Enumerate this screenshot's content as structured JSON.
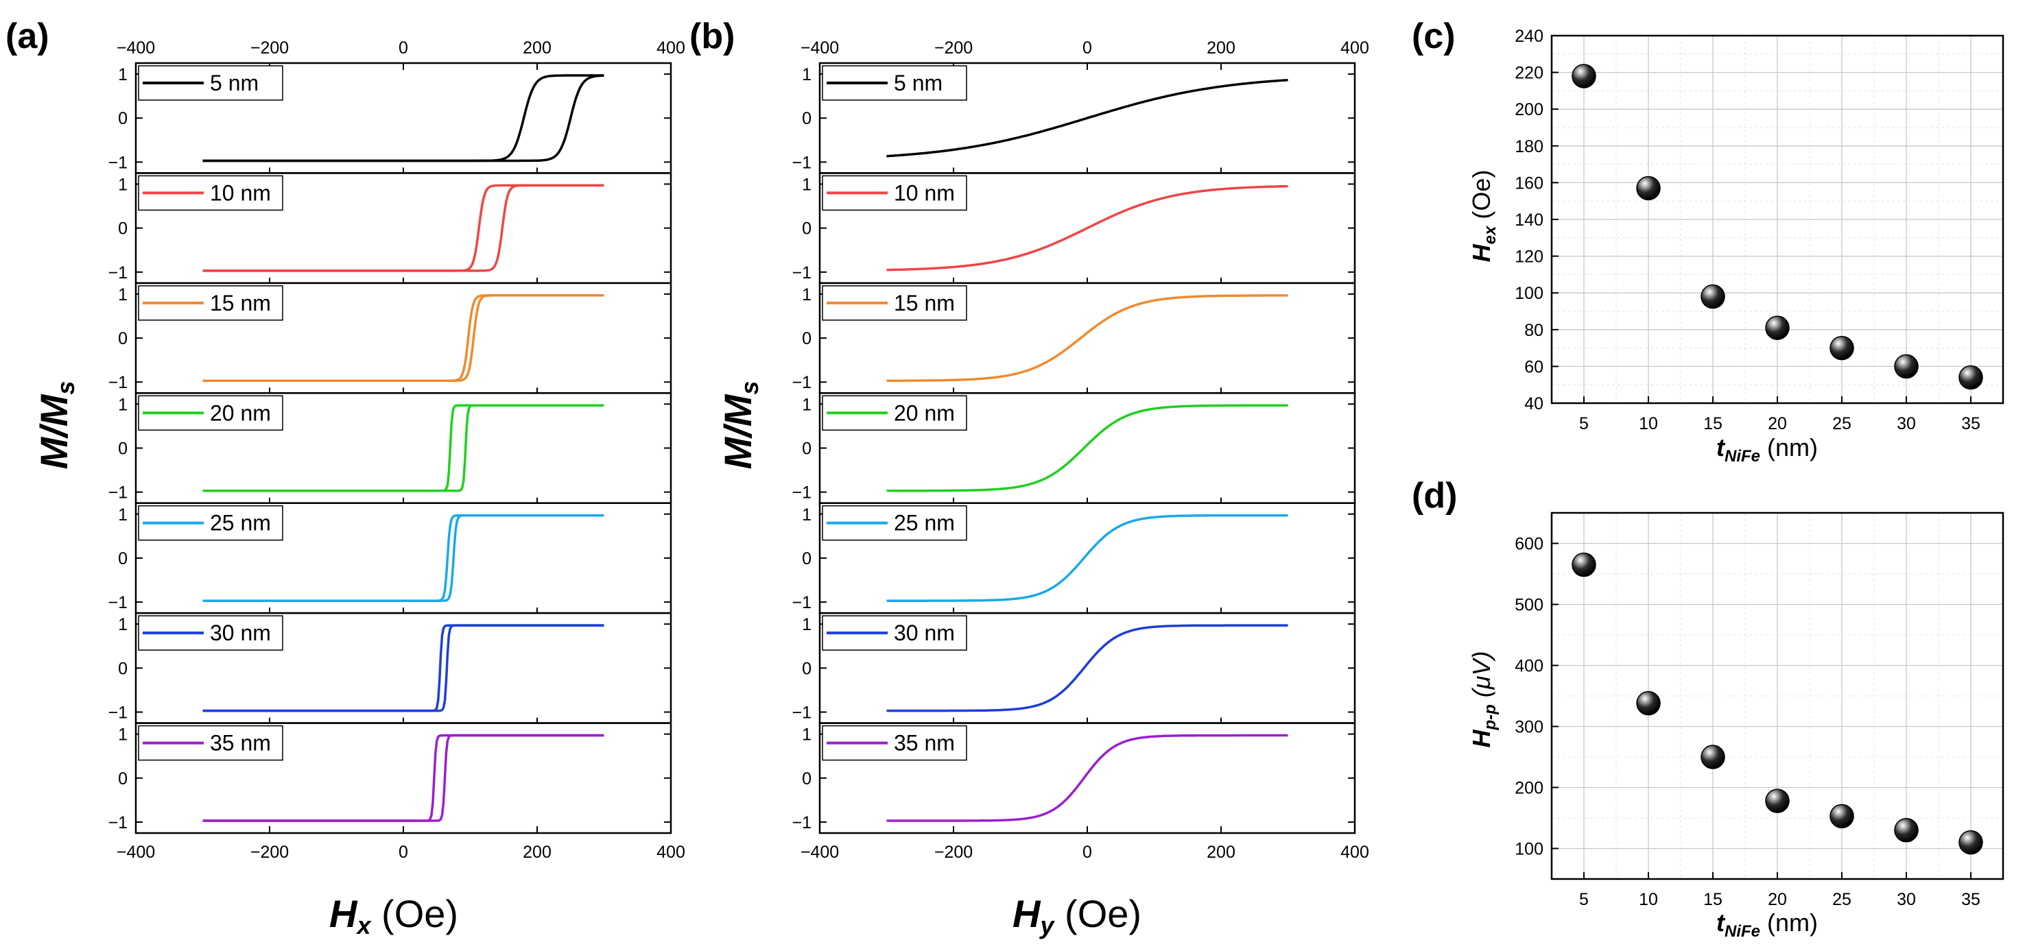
{
  "panel_labels": {
    "a": "(a)",
    "b": "(b)",
    "c": "(c)",
    "d": "(d)"
  },
  "axis_titles": {
    "a_x": {
      "main": "H",
      "sub": "x",
      "unit": " (Oe)"
    },
    "b_x": {
      "main": "H",
      "sub": "y",
      "unit": " (Oe)"
    },
    "a_y": {
      "main": "M/M",
      "sub": "s"
    },
    "b_y": {
      "main": "M/M",
      "sub": "s"
    },
    "c_y": {
      "main": "H",
      "sub": "ex",
      "unit": " (Oe)"
    },
    "d_y": {
      "main": "H",
      "sub": "p-p",
      "unit": " (μV)"
    },
    "c_x": {
      "main": "t",
      "sub": "NiFe",
      "unit": " (nm)"
    },
    "d_x": {
      "main": "t",
      "sub": "NiFe",
      "unit": " (nm)"
    }
  },
  "colors": {
    "5 nm": "#000000",
    "10 nm": "#f04545",
    "15 nm": "#f08a2e",
    "20 nm": "#20d020",
    "25 nm": "#19a9ea",
    "30 nm": "#1d3fd8",
    "35 nm": "#9b1fd0"
  },
  "chart_data": [
    {
      "id": "a",
      "type": "line",
      "title": "",
      "xlabel": "Hx (Oe)",
      "ylabel": "M/Ms",
      "xlim": [
        -400,
        400
      ],
      "xticks": [
        -400,
        -200,
        0,
        200,
        400
      ],
      "xtick_labels": [
        "−400",
        "−200",
        "0",
        "200",
        "400"
      ],
      "ylim": [
        -1.25,
        1.25
      ],
      "yticks": [
        -1,
        0,
        1
      ],
      "ytick_labels": [
        "−1",
        "0",
        "1"
      ],
      "field_range": [
        -300,
        300
      ],
      "legend_position": "top-left",
      "series": [
        {
          "name": "5 nm",
          "loop": "square",
          "switch_up_Oe": 250,
          "switch_down_Oe": 180,
          "width_Oe": 16
        },
        {
          "name": "10 nm",
          "loop": "square",
          "switch_up_Oe": 148,
          "switch_down_Oe": 113,
          "width_Oe": 8
        },
        {
          "name": "15 nm",
          "loop": "square",
          "switch_up_Oe": 105,
          "switch_down_Oe": 97,
          "width_Oe": 7
        },
        {
          "name": "20 nm",
          "loop": "square",
          "switch_up_Oe": 93,
          "switch_down_Oe": 70,
          "width_Oe": 3
        },
        {
          "name": "25 nm",
          "loop": "square",
          "switch_up_Oe": 75,
          "switch_down_Oe": 66,
          "width_Oe": 4
        },
        {
          "name": "30 nm",
          "loop": "square",
          "switch_up_Oe": 65,
          "switch_down_Oe": 55,
          "width_Oe": 3
        },
        {
          "name": "35 nm",
          "loop": "square",
          "switch_up_Oe": 62,
          "switch_down_Oe": 46,
          "width_Oe": 3
        }
      ]
    },
    {
      "id": "b",
      "type": "line",
      "title": "",
      "xlabel": "Hy (Oe)",
      "ylabel": "M/Ms",
      "xlim": [
        -400,
        400
      ],
      "xticks": [
        -400,
        -200,
        0,
        200,
        400
      ],
      "xtick_labels": [
        "−400",
        "−200",
        "0",
        "200",
        "400"
      ],
      "ylim": [
        -1.25,
        1.25
      ],
      "yticks": [
        -1,
        0,
        1
      ],
      "ytick_labels": [
        "−1",
        "0",
        "1"
      ],
      "field_range": [
        -300,
        300
      ],
      "legend_position": "top-left",
      "series": [
        {
          "name": "5 nm",
          "loop": "hard-axis",
          "center_Oe": 0,
          "scale_Oe": 210
        },
        {
          "name": "10 nm",
          "loop": "hard-axis",
          "center_Oe": 0,
          "scale_Oe": 130
        },
        {
          "name": "15 nm",
          "loop": "hard-axis",
          "center_Oe": -10,
          "scale_Oe": 80
        },
        {
          "name": "20 nm",
          "loop": "hard-axis",
          "center_Oe": -5,
          "scale_Oe": 65
        },
        {
          "name": "25 nm",
          "loop": "hard-axis",
          "center_Oe": -5,
          "scale_Oe": 55
        },
        {
          "name": "30 nm",
          "loop": "hard-axis",
          "center_Oe": -5,
          "scale_Oe": 52
        },
        {
          "name": "35 nm",
          "loop": "hard-axis",
          "center_Oe": -5,
          "scale_Oe": 48
        }
      ]
    },
    {
      "id": "c",
      "type": "scatter",
      "title": "",
      "xlabel": "tNiFe (nm)",
      "ylabel": "Hex (Oe)",
      "x": [
        5,
        10,
        15,
        20,
        25,
        30,
        35
      ],
      "y": [
        218,
        157,
        98,
        81,
        70,
        60,
        54
      ],
      "xlim": [
        2.5,
        37.5
      ],
      "ylim": [
        40,
        240
      ],
      "xticks": [
        5,
        10,
        15,
        20,
        25,
        30,
        35
      ],
      "xtick_labels": [
        "5",
        "10",
        "15",
        "20",
        "25",
        "30",
        "35"
      ],
      "yticks": [
        40,
        60,
        80,
        100,
        120,
        140,
        160,
        180,
        200,
        220,
        240
      ],
      "ytick_labels": [
        "40",
        "60",
        "80",
        "100",
        "120",
        "140",
        "160",
        "180",
        "200",
        "220",
        "240"
      ],
      "grid": true
    },
    {
      "id": "d",
      "type": "scatter",
      "title": "",
      "xlabel": "tNiFe (nm)",
      "ylabel": "Hp-p (μV)",
      "x": [
        5,
        10,
        15,
        20,
        25,
        30,
        35
      ],
      "y": [
        565,
        338,
        250,
        178,
        153,
        130,
        110
      ],
      "xlim": [
        2.5,
        37.5
      ],
      "ylim": [
        50,
        650
      ],
      "xticks": [
        5,
        10,
        15,
        20,
        25,
        30,
        35
      ],
      "xtick_labels": [
        "5",
        "10",
        "15",
        "20",
        "25",
        "30",
        "35"
      ],
      "yticks": [
        100,
        200,
        300,
        400,
        500,
        600
      ],
      "ytick_labels": [
        "100",
        "200",
        "300",
        "400",
        "500",
        "600"
      ],
      "grid": true
    }
  ]
}
